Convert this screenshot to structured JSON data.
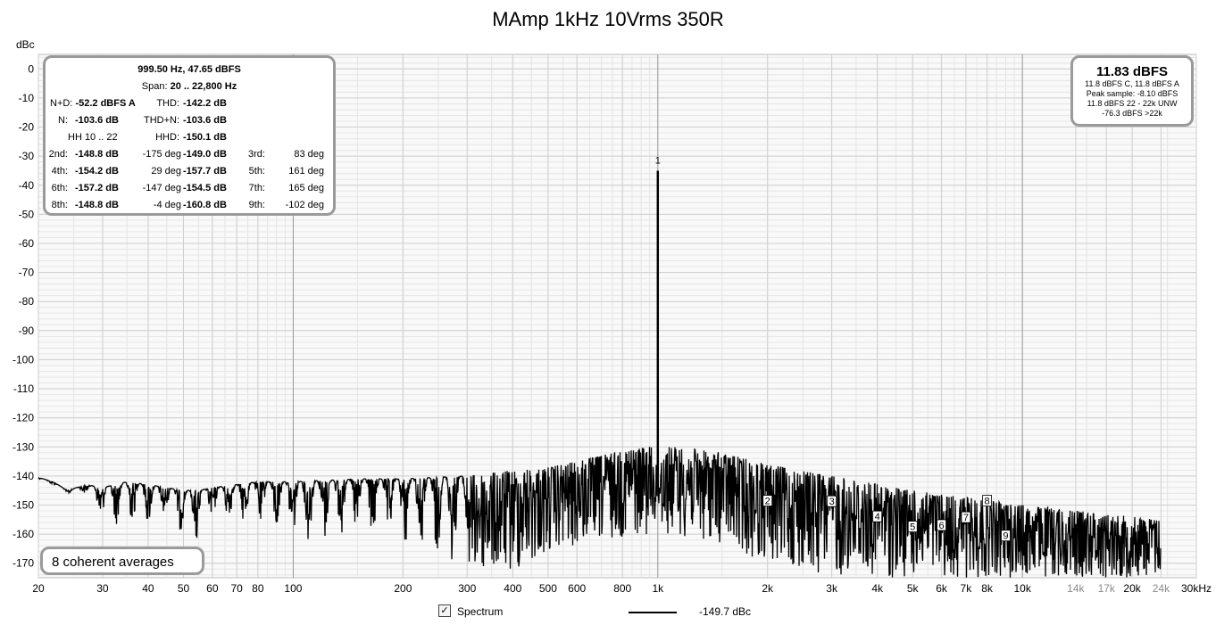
{
  "title": "MAmp 1kHz 10Vrms 350R",
  "measurements": {
    "freq_level": "999.50 Hz, 47.65 dBFS",
    "span_label": "Span:",
    "span_value": "20 .. 22,800 Hz",
    "nd_label": "N+D:",
    "nd_value": "-52.2 dBFS A",
    "thd_label": "THD:",
    "thd_value": "-142.2 dB",
    "n_label": "N:",
    "n_value": "-103.6 dB",
    "thdn_label": "THD+N:",
    "thdn_value": "-103.6 dB",
    "hh_label": "HH 10 .. 22",
    "hhd_label": "HHD:",
    "hhd_value": "-150.1 dB",
    "harmonics": [
      {
        "label": "2nd:",
        "value": "-148.8 dB",
        "phase": "-175 deg"
      },
      {
        "label": "3rd:",
        "value": "-149.0 dB",
        "phase": "83 deg"
      },
      {
        "label": "4th:",
        "value": "-154.2 dB",
        "phase": "29 deg"
      },
      {
        "label": "5th:",
        "value": "-157.7 dB",
        "phase": "161 deg"
      },
      {
        "label": "6th:",
        "value": "-157.2 dB",
        "phase": "-147 deg"
      },
      {
        "label": "7th:",
        "value": "-154.5 dB",
        "phase": "165 deg"
      },
      {
        "label": "8th:",
        "value": "-148.8 dB",
        "phase": "-4 deg"
      },
      {
        "label": "9th:",
        "value": "-160.8 dB",
        "phase": "-102 deg"
      }
    ]
  },
  "level": {
    "main": "11.83 dBFS",
    "lines": [
      "11.8 dBFS C, 11.8 dBFS A",
      "Peak sample: -8.10 dBFS",
      "11.8 dBFS 22 - 22k UNW",
      "-76.3 dBFS >22k"
    ]
  },
  "averages": "8 coherent averages",
  "legend": {
    "checked": true,
    "label": "Spectrum",
    "value": "-149.7 dBc",
    "color": "#000000"
  },
  "chart_data": {
    "type": "line",
    "xscale": "log",
    "xlim": [
      20,
      30000
    ],
    "ylim": [
      -175,
      5
    ],
    "ylabel": "dBc",
    "yticks": [
      0,
      -10,
      -20,
      -30,
      -40,
      -50,
      -60,
      -70,
      -80,
      -90,
      -100,
      -110,
      -120,
      -130,
      -140,
      -150,
      -160,
      -170
    ],
    "xticks": [
      {
        "v": 20,
        "t": "20"
      },
      {
        "v": 30,
        "t": "30"
      },
      {
        "v": 40,
        "t": "40"
      },
      {
        "v": 50,
        "t": "50"
      },
      {
        "v": 60,
        "t": "60"
      },
      {
        "v": 70,
        "t": "70"
      },
      {
        "v": 80,
        "t": "80"
      },
      {
        "v": 100,
        "t": "100"
      },
      {
        "v": 200,
        "t": "200"
      },
      {
        "v": 300,
        "t": "300"
      },
      {
        "v": 400,
        "t": "400"
      },
      {
        "v": 500,
        "t": "500"
      },
      {
        "v": 600,
        "t": "600"
      },
      {
        "v": 800,
        "t": "800"
      },
      {
        "v": 1000,
        "t": "1k"
      },
      {
        "v": 2000,
        "t": "2k"
      },
      {
        "v": 3000,
        "t": "3k"
      },
      {
        "v": 4000,
        "t": "4k"
      },
      {
        "v": 5000,
        "t": "5k"
      },
      {
        "v": 6000,
        "t": "6k"
      },
      {
        "v": 7000,
        "t": "7k"
      },
      {
        "v": 8000,
        "t": "8k"
      },
      {
        "v": 10000,
        "t": "10k"
      },
      {
        "v": 14000,
        "t": "14k",
        "grey": true
      },
      {
        "v": 17000,
        "t": "17k",
        "grey": true
      },
      {
        "v": 20000,
        "t": "20k"
      },
      {
        "v": 24000,
        "t": "24k",
        "grey": true
      },
      {
        "v": 30000,
        "t": "30kHz"
      }
    ],
    "series": [
      {
        "envelope": [
          [
            20,
            -140.5,
            -141.5
          ],
          [
            22,
            -142,
            -143
          ],
          [
            24,
            -145,
            -146
          ],
          [
            27,
            -143,
            -146
          ],
          [
            30,
            -144,
            -158
          ],
          [
            35,
            -142,
            -156
          ],
          [
            40,
            -143,
            -157
          ],
          [
            45,
            -144,
            -155
          ],
          [
            50,
            -145,
            -160
          ],
          [
            55,
            -145,
            -166
          ],
          [
            60,
            -144,
            -156
          ],
          [
            70,
            -143,
            -157
          ],
          [
            80,
            -142,
            -158
          ],
          [
            90,
            -142,
            -160
          ],
          [
            100,
            -142,
            -163
          ],
          [
            150,
            -141,
            -163
          ],
          [
            200,
            -141,
            -165
          ],
          [
            300,
            -140,
            -174
          ],
          [
            400,
            -138,
            -174
          ],
          [
            500,
            -137,
            -167
          ],
          [
            600,
            -135,
            -165
          ],
          [
            700,
            -133,
            -163
          ],
          [
            800,
            -131,
            -161
          ],
          [
            900,
            -130,
            -160
          ],
          [
            1100,
            -130,
            -160
          ],
          [
            1300,
            -131,
            -162
          ],
          [
            1500,
            -132,
            -164
          ],
          [
            2000,
            -136,
            -170
          ],
          [
            3000,
            -140,
            -175
          ],
          [
            5000,
            -145,
            -175
          ],
          [
            10000,
            -150,
            -175
          ],
          [
            20000,
            -154,
            -175
          ],
          [
            24000,
            -155,
            -175
          ]
        ],
        "fundamental": {
          "x": 1000,
          "y": -35
        }
      }
    ],
    "harmonic_markers": [
      {
        "n": "1",
        "x": 1000,
        "y": -35
      },
      {
        "n": "2",
        "x": 2000,
        "y": -148.8
      },
      {
        "n": "3",
        "x": 3000,
        "y": -149.0
      },
      {
        "n": "4",
        "x": 4000,
        "y": -154.2
      },
      {
        "n": "5",
        "x": 5000,
        "y": -157.7
      },
      {
        "n": "6",
        "x": 6000,
        "y": -157.2
      },
      {
        "n": "7",
        "x": 7000,
        "y": -154.5
      },
      {
        "n": "8",
        "x": 8000,
        "y": -148.8
      },
      {
        "n": "9",
        "x": 9000,
        "y": -160.8
      }
    ]
  }
}
